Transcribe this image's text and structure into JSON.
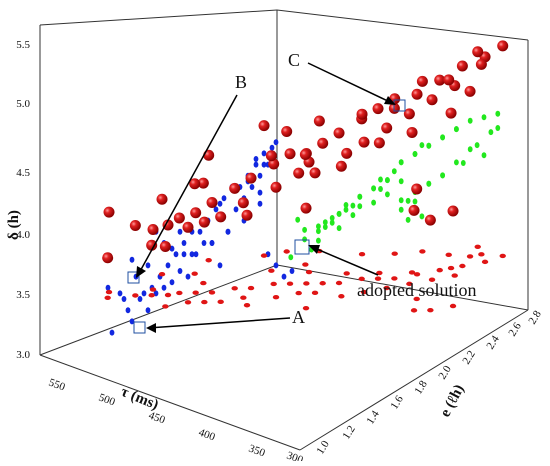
{
  "chart_data": {
    "type": "scatter",
    "z_axis": {
      "label": "δ (h)",
      "ticks": [
        "3.0",
        "3.5",
        "4.0",
        "4.5",
        "5.0",
        "5.5"
      ],
      "range": [
        3.0,
        5.5
      ]
    },
    "x_axis": {
      "label": "τ (ms)",
      "ticks": [
        "300",
        "350",
        "400",
        "450",
        "500",
        "550"
      ],
      "range": [
        300,
        560
      ]
    },
    "y_axis": {
      "label": "e (ℓh)",
      "ticks": [
        "1.0",
        "1.2",
        "1.4",
        "1.6",
        "1.8",
        "2.0",
        "2.2",
        "2.4",
        "2.6",
        "2.8"
      ],
      "range": [
        1.0,
        2.8
      ]
    },
    "annotations": [
      {
        "label": "A",
        "x": 545,
        "y": 1.1,
        "z": 3.2
      },
      {
        "label": "B",
        "x": 555,
        "y": 1.1,
        "z": 3.6
      },
      {
        "label": "C",
        "x": 340,
        "y": 2.6,
        "z": 4.9
      },
      {
        "label": "adopted solution",
        "x": 340,
        "y": 1.9,
        "z": 3.8
      }
    ],
    "pareto_red": [
      [
        545,
        1.1,
        3.2
      ],
      [
        550,
        1.15,
        3.6
      ],
      [
        530,
        1.2,
        3.5
      ],
      [
        525,
        1.3,
        3.4
      ],
      [
        520,
        1.25,
        3.3
      ],
      [
        510,
        1.3,
        3.5
      ],
      [
        505,
        1.35,
        3.55
      ],
      [
        500,
        1.2,
        3.4
      ],
      [
        495,
        1.4,
        3.6
      ],
      [
        490,
        1.3,
        3.55
      ],
      [
        485,
        1.45,
        3.7
      ],
      [
        480,
        1.35,
        3.6
      ],
      [
        475,
        1.55,
        3.8
      ],
      [
        470,
        1.4,
        3.65
      ],
      [
        465,
        1.6,
        3.9
      ],
      [
        460,
        1.5,
        3.75
      ],
      [
        455,
        1.7,
        4.0
      ],
      [
        450,
        1.45,
        3.7
      ],
      [
        445,
        1.75,
        4.1
      ],
      [
        440,
        1.6,
        3.9
      ],
      [
        435,
        1.8,
        4.1
      ],
      [
        430,
        1.7,
        4.0
      ],
      [
        425,
        1.85,
        4.2
      ],
      [
        420,
        1.75,
        4.0
      ],
      [
        415,
        1.9,
        4.3
      ],
      [
        410,
        1.6,
        3.8
      ],
      [
        405,
        2.0,
        4.4
      ],
      [
        400,
        1.8,
        4.1
      ],
      [
        395,
        2.05,
        4.5
      ],
      [
        390,
        1.9,
        4.3
      ],
      [
        385,
        2.1,
        4.5
      ],
      [
        380,
        2.0,
        4.4
      ],
      [
        375,
        2.2,
        4.6
      ],
      [
        370,
        2.1,
        4.5
      ],
      [
        365,
        2.3,
        4.7
      ],
      [
        360,
        2.2,
        4.6
      ],
      [
        355,
        2.4,
        4.8
      ],
      [
        350,
        2.3,
        4.7
      ],
      [
        345,
        2.5,
        4.85
      ],
      [
        340,
        2.6,
        4.9
      ],
      [
        445,
        1.9,
        3.9
      ],
      [
        420,
        2.0,
        4.0
      ],
      [
        400,
        2.1,
        4.1
      ],
      [
        380,
        2.2,
        4.2
      ],
      [
        360,
        2.35,
        4.35
      ],
      [
        340,
        1.9,
        3.8
      ],
      [
        350,
        2.0,
        3.9
      ],
      [
        330,
        1.95,
        3.7
      ],
      [
        320,
        2.05,
        3.75
      ],
      [
        360,
        2.5,
        4.45
      ],
      [
        500,
        1.5,
        3.8
      ],
      [
        470,
        1.8,
        3.95
      ],
      [
        490,
        1.9,
        4.1
      ],
      [
        520,
        1.7,
        3.85
      ],
      [
        430,
        2.2,
        4.2
      ],
      [
        410,
        2.3,
        4.35
      ],
      [
        395,
        2.4,
        4.5
      ],
      [
        375,
        2.45,
        4.55
      ],
      [
        355,
        2.55,
        4.7
      ],
      [
        365,
        2.6,
        4.75
      ],
      [
        480,
        2.0,
        4.0
      ],
      [
        460,
        2.1,
        4.1
      ],
      [
        515,
        1.55,
        3.7
      ],
      [
        535,
        1.45,
        3.55
      ],
      [
        455,
        1.95,
        3.9
      ]
    ],
    "projection_blue": "projection of red points on the τ-δ wall",
    "projection_green": "projection of red points on the e-δ wall",
    "projection_red_floor": "projection of red points on the τ-e floor"
  }
}
